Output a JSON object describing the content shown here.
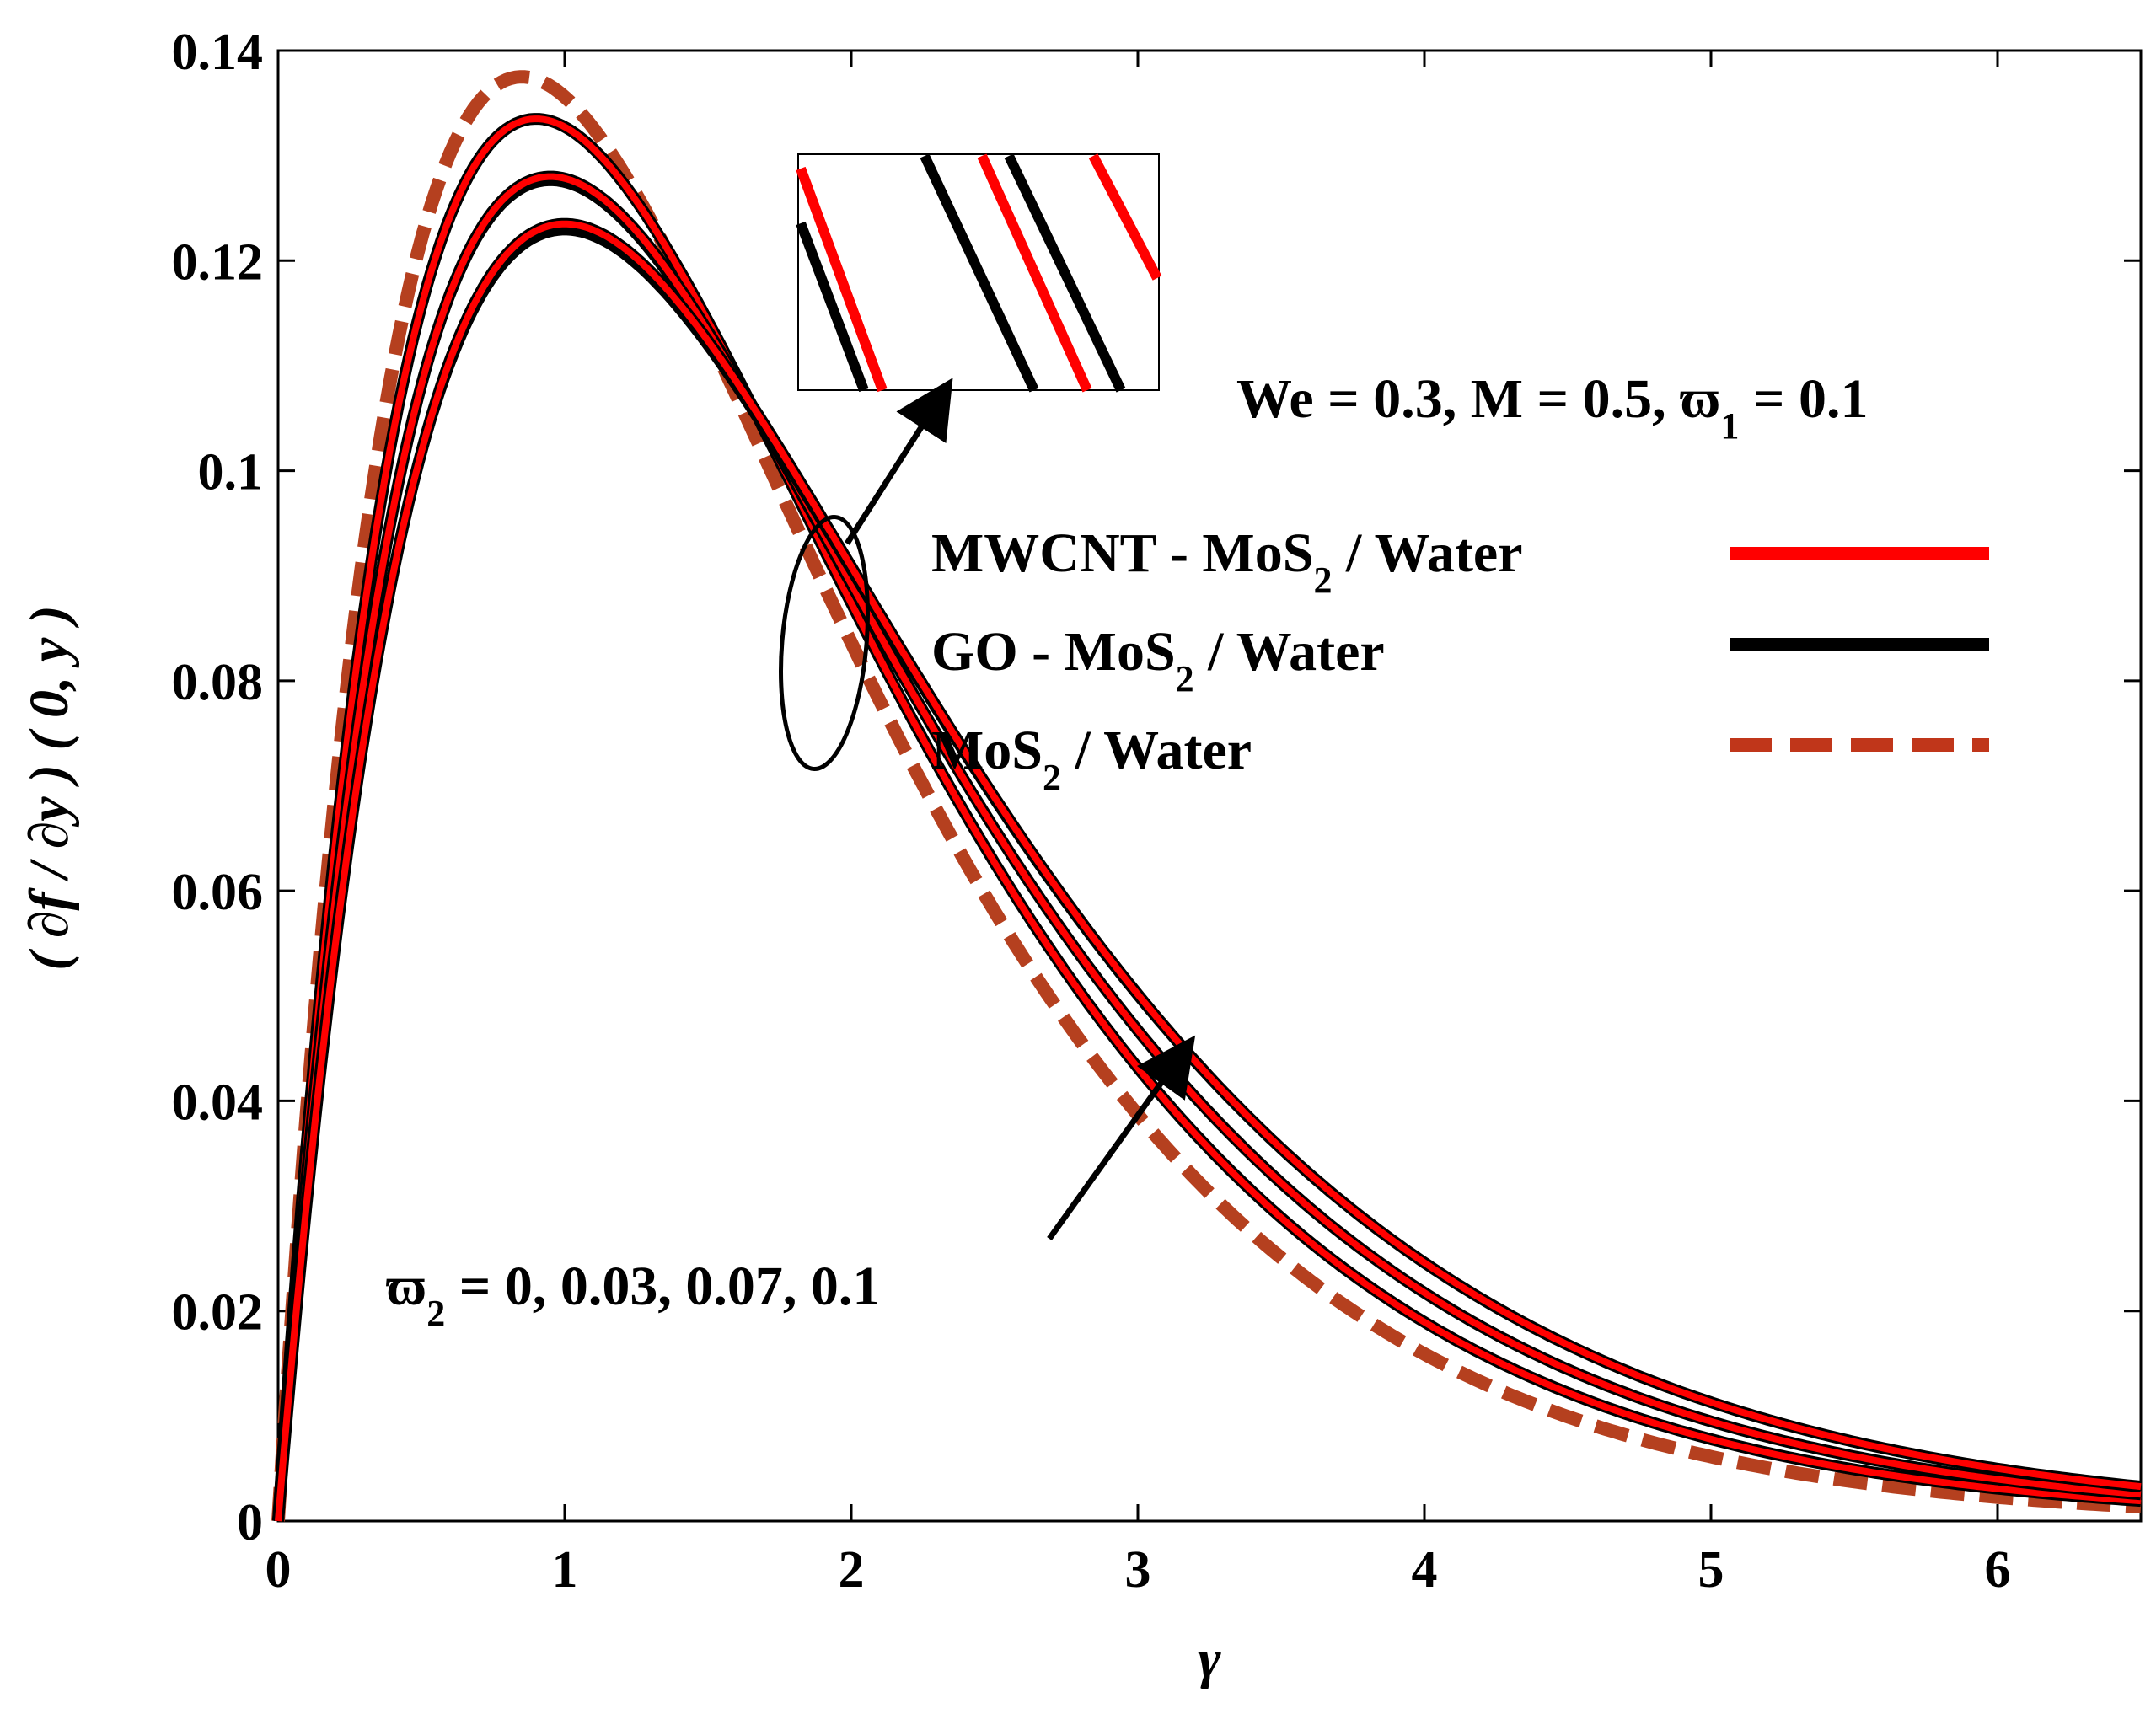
{
  "chart_data": {
    "type": "line",
    "title": "",
    "xlabel": "γ",
    "ylabel": "( ∂f / ∂y ) ( 0, y )",
    "xlim": [
      0,
      6.5
    ],
    "ylim": [
      0,
      0.14
    ],
    "xticks": [
      "0",
      "1",
      "2",
      "3",
      "4",
      "5",
      "6"
    ],
    "yticks": [
      "0",
      "0.02",
      "0.04",
      "0.06",
      "0.08",
      "0.1",
      "0.12",
      "0.14"
    ],
    "grid": false,
    "parameters_text": {
      "prefix": "We = 0.3, M = 0.5, ",
      "symbol": "ϖ",
      "subscript": "1",
      "suffix": " = 0.1"
    },
    "sweep_annotation": {
      "symbol": "ϖ",
      "subscript": "2",
      "suffix": " = 0, 0.03, 0.07, 0.1"
    },
    "legend": [
      {
        "name": "MWCNT - MoS",
        "sub": "2",
        "tail": " / Water",
        "color": "#ff0000",
        "dash": "solid"
      },
      {
        "name": "GO - MoS",
        "sub": "2",
        "tail": " / Water",
        "color": "#000000",
        "dash": "solid"
      },
      {
        "name": "MoS",
        "sub": "2",
        "tail": " / Water",
        "color": "#c0361a",
        "dash": "dashed"
      }
    ],
    "series": [
      {
        "name": "MoS2 / Water",
        "color": "#b5401f",
        "style": "dashed",
        "peak": 0.1375,
        "peak_x": 0.85
      },
      {
        "name": "GO - MoS2 / Water (ϖ2 = 0)",
        "color": "#000000",
        "style": "solid",
        "peak": 0.1335,
        "peak_x": 0.9
      },
      {
        "name": "MWCNT - MoS2 / Water (ϖ2 = 0)",
        "color": "#ff0000",
        "style": "solid",
        "peak": 0.1335,
        "peak_x": 0.9
      },
      {
        "name": "GO - MoS2 / Water (ϖ2 = 0.03)",
        "color": "#000000",
        "style": "solid",
        "peak": 0.1275,
        "peak_x": 0.95
      },
      {
        "name": "MWCNT - MoS2 / Water (ϖ2 = 0.03)",
        "color": "#ff0000",
        "style": "solid",
        "peak": 0.128,
        "peak_x": 0.95
      },
      {
        "name": "GO - MoS2 / Water (ϖ2 = 0.07)",
        "color": "#000000",
        "style": "solid",
        "peak": 0.1228,
        "peak_x": 1.0
      },
      {
        "name": "MWCNT - MoS2 / Water (ϖ2 = 0.1)",
        "color": "#ff0000",
        "style": "solid",
        "peak": 0.1235,
        "peak_x": 1.0
      }
    ]
  }
}
